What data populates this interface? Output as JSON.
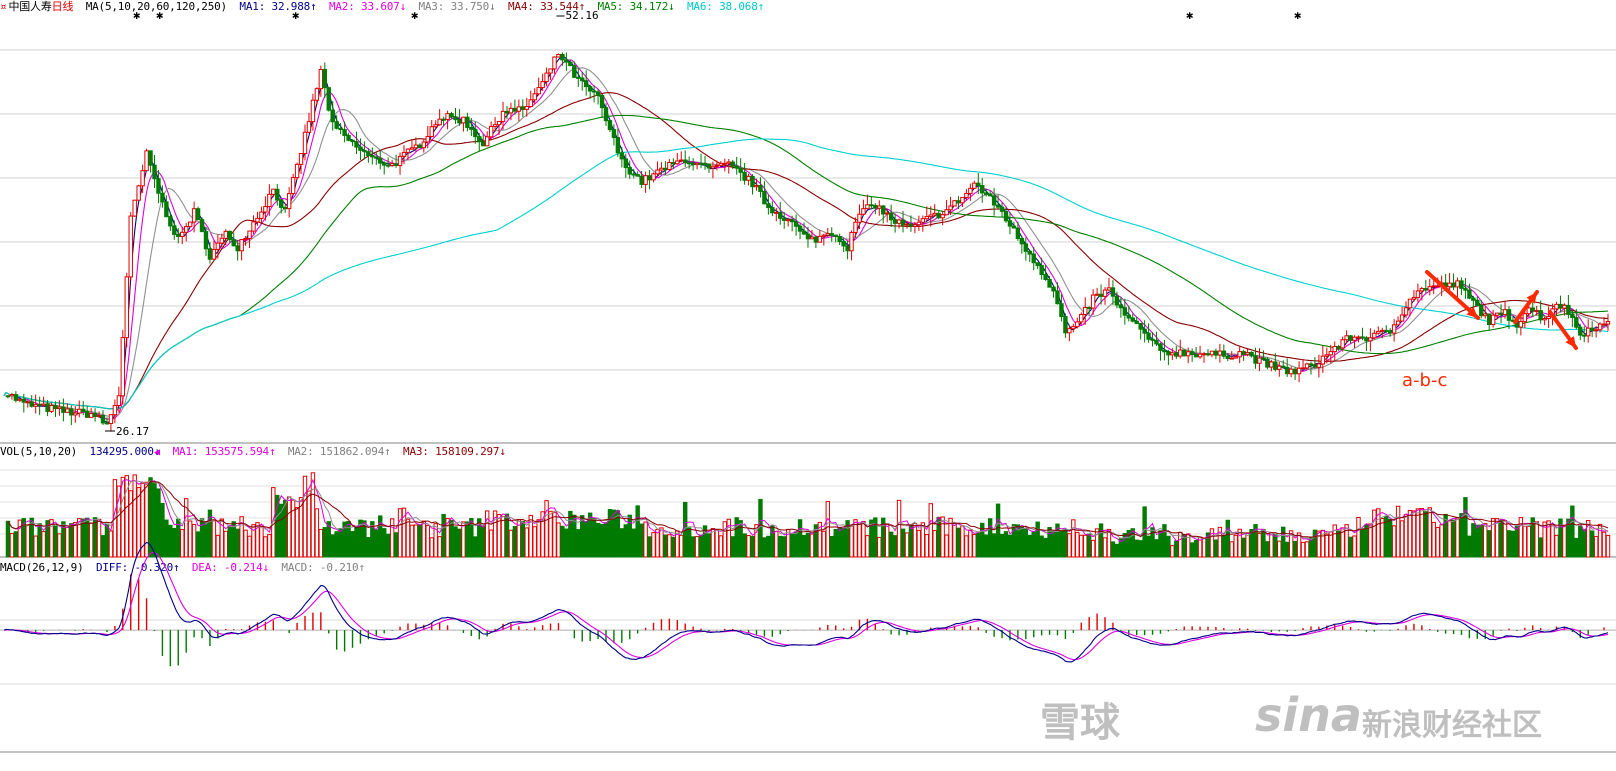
{
  "header": {
    "symbol_mark": "¤",
    "stock_name": "中国人寿",
    "period": "日线",
    "ma_label": "MA(5,10,20,60,120,250)",
    "ma1": "MA1: 32.988↑",
    "ma2": "MA2: 33.607↓",
    "ma3": "MA3: 33.750↓",
    "ma4": "MA4: 33.544↑",
    "ma5": "MA5: 34.172↓",
    "ma6": "MA6: 38.068↑"
  },
  "vol_header": {
    "label": "VOL(5,10,20)",
    "vol": "134295.000↓",
    "ma1": "MA1: 153575.594↑",
    "ma2": "MA2: 151862.094↑",
    "ma3": "MA3: 158109.297↓"
  },
  "macd_header": {
    "label": "MACD(26,12,9)",
    "diff": "DIFF: -0.320↑",
    "dea": "DEA: -0.214↓",
    "macd": "MACD: -0.210↑"
  },
  "annotations": {
    "high_label": "52.16",
    "low_label": "26.17",
    "pattern_label": "a-b-c"
  },
  "watermark": {
    "xueqiu": "雪球",
    "sina": "sina",
    "sina_text": "新浪财经社区"
  },
  "colors": {
    "up": "#e00000",
    "down": "#007a00",
    "ma1": "#00008b",
    "ma2": "#e000e0",
    "ma3": "#909090",
    "ma4": "#8b0000",
    "ma5": "#008000",
    "ma6": "#00d0d0",
    "arrow": "#ff2a00"
  },
  "chart_data": {
    "type": "candlestick",
    "ma_periods": [
      5,
      10,
      20,
      60,
      120,
      250
    ],
    "price_range": [
      25.2,
      53.6
    ],
    "price_waypoints": [
      [
        0,
        28.6
      ],
      [
        10,
        27.8
      ],
      [
        30,
        27.3
      ],
      [
        45,
        27.1
      ],
      [
        52,
        26.4
      ],
      [
        58,
        28.4
      ],
      [
        64,
        40.0
      ],
      [
        72,
        44.3
      ],
      [
        80,
        41.0
      ],
      [
        88,
        38.6
      ],
      [
        96,
        40.5
      ],
      [
        104,
        37.6
      ],
      [
        112,
        39.0
      ],
      [
        118,
        38.2
      ],
      [
        128,
        40.2
      ],
      [
        136,
        42.0
      ],
      [
        142,
        40.5
      ],
      [
        150,
        44.5
      ],
      [
        160,
        49.8
      ],
      [
        166,
        46.2
      ],
      [
        176,
        45.0
      ],
      [
        186,
        44.0
      ],
      [
        196,
        43.6
      ],
      [
        210,
        45.0
      ],
      [
        220,
        46.8
      ],
      [
        232,
        46.6
      ],
      [
        242,
        45.0
      ],
      [
        252,
        47.2
      ],
      [
        262,
        47.2
      ],
      [
        272,
        49.0
      ],
      [
        280,
        51.0
      ],
      [
        284,
        50.3
      ],
      [
        290,
        49.2
      ],
      [
        300,
        48.0
      ],
      [
        312,
        43.8
      ],
      [
        322,
        42.5
      ],
      [
        334,
        43.4
      ],
      [
        344,
        44.0
      ],
      [
        356,
        43.3
      ],
      [
        366,
        43.6
      ],
      [
        378,
        42.4
      ],
      [
        386,
        40.8
      ],
      [
        396,
        40.0
      ],
      [
        406,
        38.6
      ],
      [
        412,
        38.8
      ],
      [
        418,
        39.2
      ],
      [
        426,
        38.2
      ],
      [
        432,
        40.4
      ],
      [
        440,
        41.0
      ],
      [
        448,
        40.0
      ],
      [
        458,
        39.4
      ],
      [
        466,
        40.0
      ],
      [
        476,
        40.6
      ],
      [
        486,
        41.7
      ],
      [
        490,
        42.4
      ],
      [
        496,
        41.6
      ],
      [
        504,
        40.5
      ],
      [
        512,
        38.8
      ],
      [
        522,
        37.0
      ],
      [
        530,
        35.3
      ],
      [
        536,
        32.5
      ],
      [
        542,
        33.0
      ],
      [
        550,
        34.8
      ],
      [
        558,
        35.3
      ],
      [
        566,
        33.6
      ],
      [
        574,
        32.7
      ],
      [
        584,
        31.2
      ],
      [
        596,
        31.2
      ],
      [
        606,
        31.1
      ],
      [
        616,
        31.0
      ],
      [
        626,
        31.2
      ],
      [
        634,
        30.6
      ],
      [
        644,
        30.1
      ],
      [
        652,
        29.9
      ],
      [
        662,
        30.4
      ],
      [
        672,
        31.5
      ],
      [
        680,
        32.2
      ],
      [
        690,
        32.2
      ],
      [
        700,
        32.6
      ],
      [
        710,
        34.8
      ],
      [
        718,
        35.5
      ],
      [
        726,
        35.6
      ],
      [
        734,
        35.7
      ],
      [
        742,
        34.5
      ],
      [
        750,
        33.3
      ],
      [
        758,
        33.8
      ],
      [
        764,
        33.1
      ],
      [
        770,
        34.2
      ],
      [
        778,
        33.4
      ],
      [
        784,
        34.5
      ],
      [
        790,
        33.9
      ],
      [
        796,
        32.4
      ],
      [
        802,
        32.9
      ],
      [
        810,
        33.0
      ]
    ],
    "total_bars": 811,
    "candle_sample_step": 2,
    "vol_range": [
      0,
      320000
    ],
    "macd_range": [
      -1.4,
      3.4
    ],
    "annotations": [
      {
        "text": "52.16",
        "type": "high"
      },
      {
        "text": "26.17",
        "type": "low"
      },
      {
        "text": "a-b-c",
        "type": "pattern"
      }
    ]
  }
}
